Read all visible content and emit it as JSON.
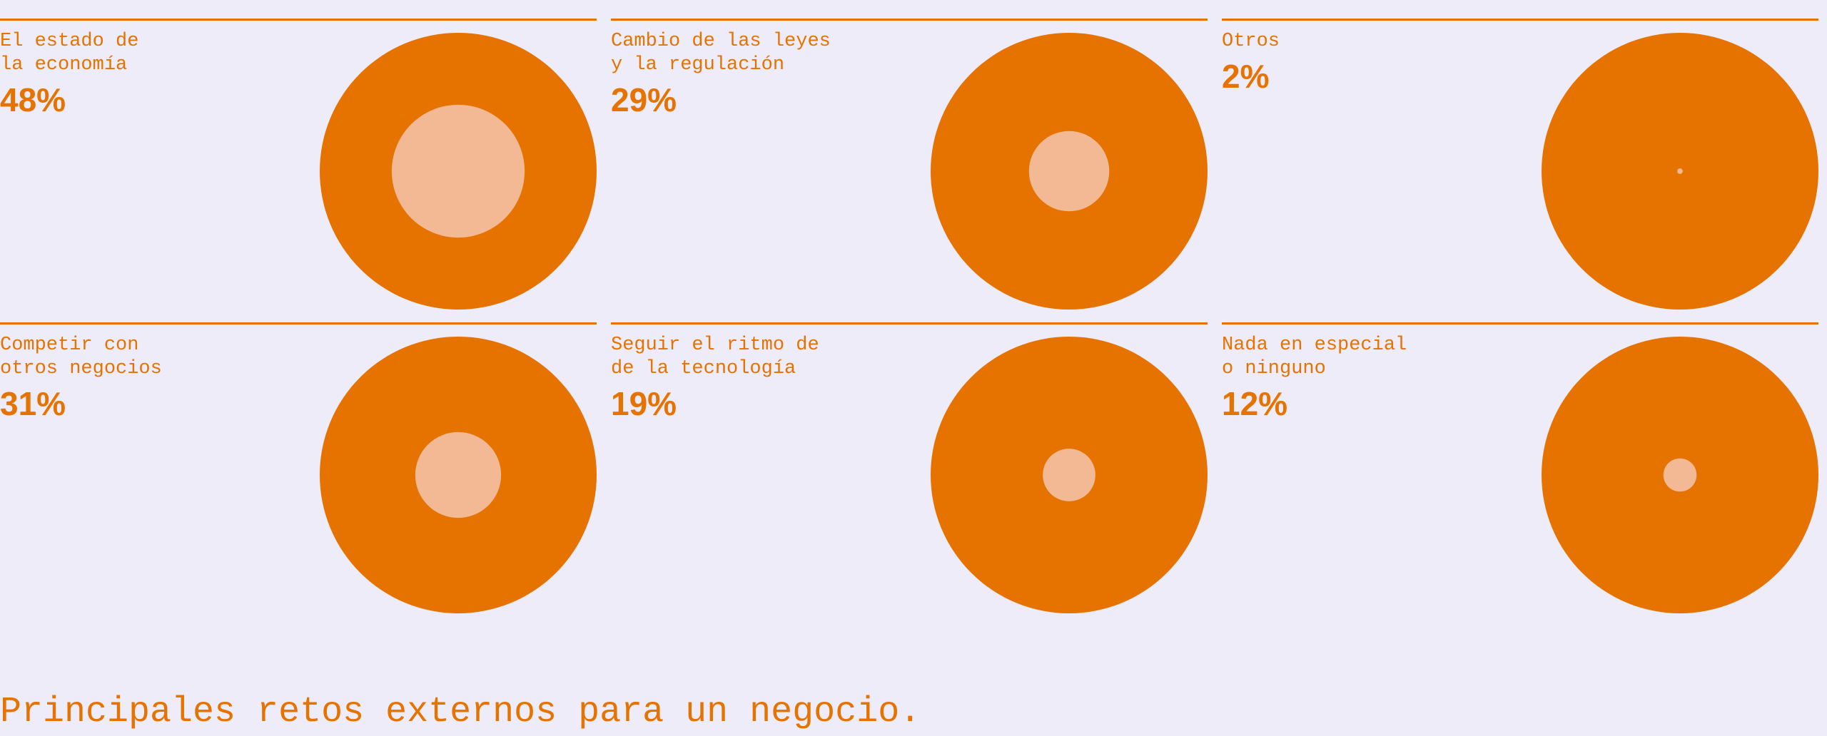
{
  "chart_data": {
    "type": "circles",
    "title": "Principales retos externos para un negocio.",
    "categories": [
      "El estado de\nla economía",
      "Cambio de las leyes\ny la regulación",
      "Otros",
      "Competir con\notros negocios",
      "Seguir el ritmo de\nde la tecnología",
      "Nada en especial\no ninguno"
    ],
    "values": [
      48,
      29,
      2,
      31,
      19,
      12
    ],
    "value_labels": [
      "48%",
      "29%",
      "2%",
      "31%",
      "19%",
      "12%"
    ],
    "color": "#e67300",
    "inner_color": "#f2b994"
  }
}
